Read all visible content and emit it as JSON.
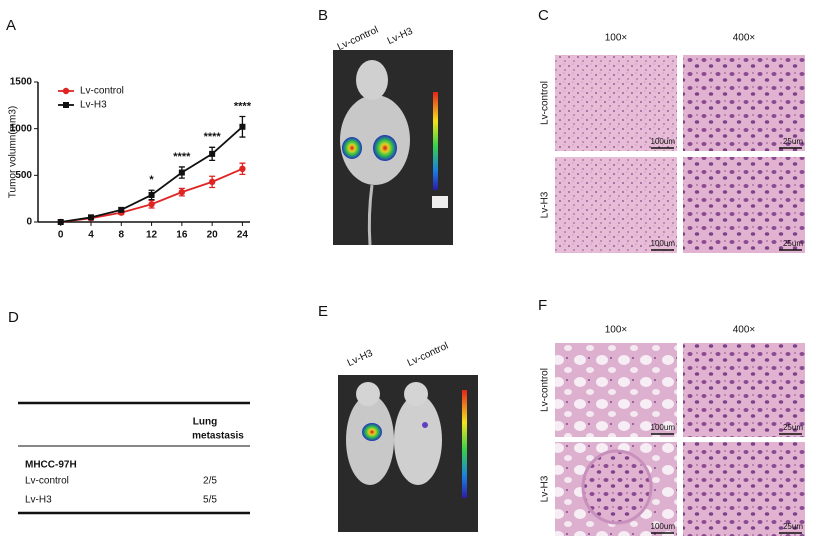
{
  "panel_labels": [
    "A",
    "B",
    "C",
    "D",
    "E",
    "F"
  ],
  "chart_data": {
    "type": "line",
    "ylabel": "Tumor volumn(mm3)",
    "x": [
      0,
      4,
      8,
      12,
      16,
      20,
      24
    ],
    "xlim": [
      -3,
      25
    ],
    "xticks": [
      0,
      4,
      8,
      12,
      16,
      20,
      24
    ],
    "ylim": [
      0,
      1500
    ],
    "yticks": [
      0,
      500,
      1000,
      1500
    ],
    "legend": "upper left",
    "series": [
      {
        "name": "Lv-control",
        "color": "#e02424",
        "marker": "circle",
        "values": [
          0,
          40,
          100,
          190,
          320,
          430,
          570
        ],
        "errors": [
          5,
          15,
          20,
          40,
          40,
          60,
          60
        ]
      },
      {
        "name": "Lv-H3",
        "color": "#111111",
        "marker": "square",
        "values": [
          0,
          50,
          130,
          290,
          530,
          730,
          1020
        ],
        "errors": [
          5,
          15,
          20,
          50,
          60,
          70,
          110
        ]
      }
    ],
    "annotations": [
      {
        "x": 12,
        "text": "*"
      },
      {
        "x": 16,
        "text": "****"
      },
      {
        "x": 20,
        "text": "****"
      },
      {
        "x": 24,
        "text": "****"
      }
    ]
  },
  "bli_top": {
    "labels": [
      "Lv-control",
      "Lv-H3"
    ]
  },
  "histology_top": {
    "columns": [
      "100×",
      "400×"
    ],
    "rows": [
      "Lv-control",
      "Lv-H3"
    ],
    "scale_bars": [
      "100um",
      "25um"
    ]
  },
  "table": {
    "header": [
      "Lung",
      "metastasis"
    ],
    "group": "MHCC-97H",
    "rows": [
      [
        "Lv-control",
        "2/5"
      ],
      [
        "Lv-H3",
        "5/5"
      ]
    ]
  },
  "bli_bottom": {
    "labels": [
      "Lv-H3",
      "Lv-control"
    ]
  },
  "histology_bottom": {
    "columns": [
      "100×",
      "400×"
    ],
    "rows": [
      "Lv-control",
      "Lv-H3"
    ],
    "scale_bars": [
      "100um",
      "25um"
    ]
  }
}
